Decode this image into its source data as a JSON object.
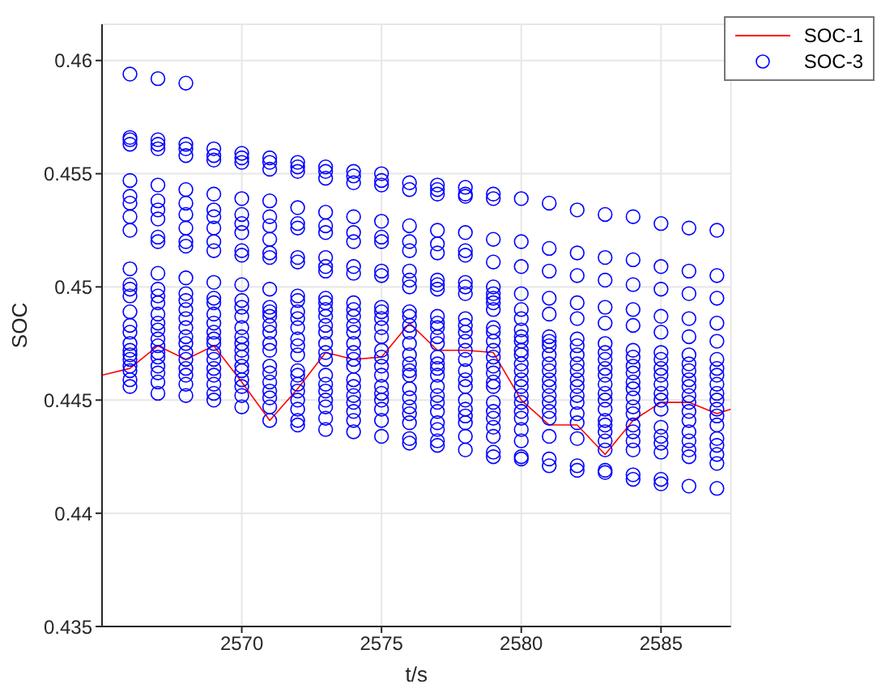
{
  "chart_data": {
    "type": "scatter",
    "xlabel": "t/s",
    "ylabel": "SOC",
    "xlim": [
      2565,
      2587.5
    ],
    "xticks": [
      2570,
      2575,
      2580,
      2585
    ],
    "ylim": [
      0.435,
      0.4616
    ],
    "yticks": [
      0.435,
      0.44,
      0.445,
      0.45,
      0.455,
      0.46
    ],
    "grid": true,
    "legend": "top right",
    "series": [
      {
        "name": "SOC-1",
        "type": "line",
        "color": "#ff0000",
        "line_style": "solid",
        "marker": "none",
        "x": [
          2565,
          2566,
          2567,
          2568,
          2569,
          2570,
          2571,
          2572,
          2573,
          2574,
          2575,
          2576,
          2577,
          2578,
          2579,
          2580,
          2581,
          2582,
          2583,
          2584,
          2585,
          2586,
          2587,
          2587.5
        ],
        "values": [
          0.4461,
          0.4464,
          0.4474,
          0.4468,
          0.4474,
          0.4458,
          0.4441,
          0.4455,
          0.4471,
          0.4468,
          0.4469,
          0.4484,
          0.4472,
          0.4472,
          0.4471,
          0.445,
          0.4439,
          0.4439,
          0.4426,
          0.4441,
          0.4449,
          0.4449,
          0.4444,
          0.4446
        ]
      },
      {
        "name": "SOC-3",
        "color": "#0000ff",
        "marker": "circle",
        "x": [
          2566,
          2566,
          2566,
          2566,
          2566,
          2566,
          2566,
          2566,
          2566,
          2566,
          2566,
          2566,
          2566,
          2566,
          2566,
          2566,
          2566,
          2566,
          2566,
          2566,
          2566,
          2566,
          2566,
          2566,
          2567,
          2567,
          2567,
          2567,
          2567,
          2567,
          2567,
          2567,
          2567,
          2567,
          2567,
          2567,
          2567,
          2567,
          2567,
          2567,
          2567,
          2567,
          2567,
          2567,
          2567,
          2567,
          2567,
          2567,
          2567,
          2568,
          2568,
          2568,
          2568,
          2568,
          2568,
          2568,
          2568,
          2568,
          2568,
          2568,
          2568,
          2568,
          2568,
          2568,
          2568,
          2568,
          2568,
          2568,
          2568,
          2568,
          2568,
          2568,
          2568,
          2569,
          2569,
          2569,
          2569,
          2569,
          2569,
          2569,
          2569,
          2569,
          2569,
          2569,
          2569,
          2569,
          2569,
          2569,
          2569,
          2569,
          2569,
          2569,
          2569,
          2569,
          2569,
          2569,
          2569,
          2570,
          2570,
          2570,
          2570,
          2570,
          2570,
          2570,
          2570,
          2570,
          2570,
          2570,
          2570,
          2570,
          2570,
          2570,
          2570,
          2570,
          2570,
          2570,
          2570,
          2570,
          2570,
          2570,
          2570,
          2571,
          2571,
          2571,
          2571,
          2571,
          2571,
          2571,
          2571,
          2571,
          2571,
          2571,
          2571,
          2571,
          2571,
          2571,
          2571,
          2571,
          2571,
          2571,
          2571,
          2571,
          2571,
          2571,
          2571,
          2572,
          2572,
          2572,
          2572,
          2572,
          2572,
          2572,
          2572,
          2572,
          2572,
          2572,
          2572,
          2572,
          2572,
          2572,
          2572,
          2572,
          2572,
          2572,
          2572,
          2572,
          2572,
          2572,
          2572,
          2573,
          2573,
          2573,
          2573,
          2573,
          2573,
          2573,
          2573,
          2573,
          2573,
          2573,
          2573,
          2573,
          2573,
          2573,
          2573,
          2573,
          2573,
          2573,
          2573,
          2573,
          2573,
          2573,
          2573,
          2573,
          2574,
          2574,
          2574,
          2574,
          2574,
          2574,
          2574,
          2574,
          2574,
          2574,
          2574,
          2574,
          2574,
          2574,
          2574,
          2574,
          2574,
          2574,
          2574,
          2574,
          2574,
          2574,
          2574,
          2574,
          2575,
          2575,
          2575,
          2575,
          2575,
          2575,
          2575,
          2575,
          2575,
          2575,
          2575,
          2575,
          2575,
          2575,
          2575,
          2575,
          2575,
          2575,
          2575,
          2575,
          2575,
          2575,
          2575,
          2576,
          2576,
          2576,
          2576,
          2576,
          2576,
          2576,
          2576,
          2576,
          2576,
          2576,
          2576,
          2576,
          2576,
          2576,
          2576,
          2576,
          2576,
          2576,
          2576,
          2576,
          2576,
          2576,
          2576,
          2577,
          2577,
          2577,
          2577,
          2577,
          2577,
          2577,
          2577,
          2577,
          2577,
          2577,
          2577,
          2577,
          2577,
          2577,
          2577,
          2577,
          2577,
          2577,
          2577,
          2577,
          2577,
          2577,
          2577,
          2577,
          2577,
          2578,
          2578,
          2578,
          2578,
          2578,
          2578,
          2578,
          2578,
          2578,
          2578,
          2578,
          2578,
          2578,
          2578,
          2578,
          2578,
          2578,
          2578,
          2578,
          2578,
          2578,
          2578,
          2578,
          2578,
          2579,
          2579,
          2579,
          2579,
          2579,
          2579,
          2579,
          2579,
          2579,
          2579,
          2579,
          2579,
          2579,
          2579,
          2579,
          2579,
          2579,
          2579,
          2579,
          2579,
          2579,
          2579,
          2579,
          2579,
          2579,
          2580,
          2580,
          2580,
          2580,
          2580,
          2580,
          2580,
          2580,
          2580,
          2580,
          2580,
          2580,
          2580,
          2580,
          2580,
          2580,
          2580,
          2580,
          2580,
          2580,
          2580,
          2580,
          2580,
          2581,
          2581,
          2581,
          2581,
          2581,
          2581,
          2581,
          2581,
          2581,
          2581,
          2581,
          2581,
          2581,
          2581,
          2581,
          2581,
          2581,
          2581,
          2581,
          2581,
          2582,
          2582,
          2582,
          2582,
          2582,
          2582,
          2582,
          2582,
          2582,
          2582,
          2582,
          2582,
          2582,
          2582,
          2582,
          2582,
          2582,
          2582,
          2582,
          2583,
          2583,
          2583,
          2583,
          2583,
          2583,
          2583,
          2583,
          2583,
          2583,
          2583,
          2583,
          2583,
          2583,
          2583,
          2583,
          2583,
          2583,
          2583,
          2583,
          2583,
          2584,
          2584,
          2584,
          2584,
          2584,
          2584,
          2584,
          2584,
          2584,
          2584,
          2584,
          2584,
          2584,
          2584,
          2584,
          2584,
          2584,
          2584,
          2584,
          2584,
          2585,
          2585,
          2585,
          2585,
          2585,
          2585,
          2585,
          2585,
          2585,
          2585,
          2585,
          2585,
          2585,
          2585,
          2585,
          2585,
          2585,
          2585,
          2585,
          2586,
          2586,
          2586,
          2586,
          2586,
          2586,
          2586,
          2586,
          2586,
          2586,
          2586,
          2586,
          2586,
          2586,
          2586,
          2586,
          2586,
          2586,
          2586,
          2587,
          2587,
          2587,
          2587,
          2587,
          2587,
          2587,
          2587,
          2587,
          2587,
          2587,
          2587,
          2587,
          2587,
          2587,
          2587,
          2587,
          2587,
          2587
        ],
        "values": [
          0.4594,
          0.4566,
          0.4565,
          0.4563,
          0.4547,
          0.454,
          0.4537,
          0.4531,
          0.4525,
          0.4508,
          0.4501,
          0.4499,
          0.4496,
          0.4489,
          0.4483,
          0.448,
          0.4475,
          0.4472,
          0.447,
          0.4468,
          0.4465,
          0.4463,
          0.4459,
          0.4456,
          0.4592,
          0.4565,
          0.4563,
          0.4561,
          0.4545,
          0.4538,
          0.4534,
          0.453,
          0.4522,
          0.452,
          0.4506,
          0.4499,
          0.4496,
          0.4493,
          0.4488,
          0.4484,
          0.4481,
          0.4477,
          0.4474,
          0.4471,
          0.4469,
          0.4465,
          0.4462,
          0.4458,
          0.4453,
          0.459,
          0.4563,
          0.4561,
          0.4558,
          0.4543,
          0.4537,
          0.4532,
          0.4526,
          0.452,
          0.4518,
          0.4504,
          0.4497,
          0.4494,
          0.449,
          0.4486,
          0.4482,
          0.4478,
          0.4475,
          0.4471,
          0.4468,
          0.4464,
          0.4461,
          0.4457,
          0.4452,
          0.4561,
          0.4558,
          0.4556,
          0.4541,
          0.4534,
          0.4531,
          0.4526,
          0.452,
          0.4516,
          0.4502,
          0.4495,
          0.4493,
          0.4488,
          0.4484,
          0.448,
          0.4477,
          0.4475,
          0.4471,
          0.4468,
          0.4464,
          0.4461,
          0.4457,
          0.4453,
          0.445,
          0.4559,
          0.4557,
          0.4555,
          0.4539,
          0.4532,
          0.4528,
          0.4524,
          0.4516,
          0.4514,
          0.4501,
          0.4494,
          0.4491,
          0.4487,
          0.4482,
          0.4478,
          0.4475,
          0.4472,
          0.4469,
          0.4465,
          0.4463,
          0.4459,
          0.4456,
          0.4452,
          0.4447,
          0.4557,
          0.4555,
          0.4552,
          0.4538,
          0.4531,
          0.4527,
          0.4521,
          0.4515,
          0.4513,
          0.4499,
          0.4491,
          0.4489,
          0.4487,
          0.4483,
          0.448,
          0.4475,
          0.4472,
          0.4465,
          0.4462,
          0.4458,
          0.4454,
          0.4451,
          0.4447,
          0.4441,
          0.4555,
          0.4553,
          0.4551,
          0.4535,
          0.4528,
          0.4526,
          0.4513,
          0.4511,
          0.4496,
          0.4494,
          0.4489,
          0.4486,
          0.4482,
          0.4477,
          0.4474,
          0.447,
          0.4463,
          0.4461,
          0.4457,
          0.4454,
          0.445,
          0.4446,
          0.4441,
          0.4439,
          0.4553,
          0.4551,
          0.4548,
          0.4533,
          0.4527,
          0.4524,
          0.4513,
          0.4509,
          0.4507,
          0.4495,
          0.4493,
          0.449,
          0.4487,
          0.4483,
          0.448,
          0.4475,
          0.4471,
          0.4468,
          0.4461,
          0.4457,
          0.4454,
          0.445,
          0.4447,
          0.4442,
          0.4437,
          0.4551,
          0.4549,
          0.4546,
          0.4531,
          0.4524,
          0.452,
          0.4509,
          0.4506,
          0.4493,
          0.449,
          0.4487,
          0.4483,
          0.448,
          0.4475,
          0.4471,
          0.4468,
          0.4465,
          0.4459,
          0.4456,
          0.4452,
          0.4449,
          0.4445,
          0.4441,
          0.4436,
          0.455,
          0.4547,
          0.4545,
          0.4529,
          0.4522,
          0.452,
          0.4507,
          0.4505,
          0.4491,
          0.4489,
          0.4486,
          0.4482,
          0.4478,
          0.4472,
          0.4469,
          0.4465,
          0.4461,
          0.4456,
          0.4453,
          0.445,
          0.4446,
          0.4441,
          0.4434,
          0.4546,
          0.4543,
          0.4527,
          0.452,
          0.4516,
          0.4507,
          0.4503,
          0.45,
          0.4489,
          0.4487,
          0.4483,
          0.448,
          0.4475,
          0.447,
          0.4466,
          0.4463,
          0.4461,
          0.4455,
          0.4451,
          0.4447,
          0.4444,
          0.444,
          0.4433,
          0.4431,
          0.4545,
          0.4543,
          0.4541,
          0.4525,
          0.4519,
          0.4515,
          0.4503,
          0.4501,
          0.4499,
          0.4487,
          0.4484,
          0.4482,
          0.4478,
          0.4475,
          0.4469,
          0.4466,
          0.4464,
          0.4461,
          0.4456,
          0.4452,
          0.4449,
          0.4445,
          0.444,
          0.4437,
          0.4432,
          0.443,
          0.4544,
          0.4541,
          0.454,
          0.4524,
          0.4516,
          0.4514,
          0.4502,
          0.45,
          0.4497,
          0.4486,
          0.4483,
          0.448,
          0.4476,
          0.4472,
          0.4468,
          0.4463,
          0.4459,
          0.4456,
          0.445,
          0.4446,
          0.4443,
          0.444,
          0.4434,
          0.4428,
          0.4541,
          0.4539,
          0.4521,
          0.4511,
          0.45,
          0.4497,
          0.4495,
          0.4493,
          0.449,
          0.4482,
          0.448,
          0.4476,
          0.4472,
          0.4469,
          0.4465,
          0.4462,
          0.4458,
          0.4456,
          0.4449,
          0.4445,
          0.4442,
          0.4438,
          0.4434,
          0.4427,
          0.4425,
          0.4539,
          0.452,
          0.4509,
          0.4497,
          0.449,
          0.4486,
          0.4481,
          0.4478,
          0.4476,
          0.4472,
          0.447,
          0.4466,
          0.4463,
          0.4459,
          0.4456,
          0.4452,
          0.4449,
          0.4445,
          0.4442,
          0.4437,
          0.4432,
          0.4425,
          0.4424,
          0.4537,
          0.4517,
          0.4507,
          0.4495,
          0.4488,
          0.4478,
          0.4476,
          0.4474,
          0.447,
          0.4466,
          0.4463,
          0.4459,
          0.4456,
          0.4452,
          0.4449,
          0.4445,
          0.4442,
          0.4434,
          0.4424,
          0.4421,
          0.4534,
          0.4515,
          0.4505,
          0.4493,
          0.4486,
          0.4477,
          0.4474,
          0.447,
          0.4466,
          0.4463,
          0.4459,
          0.4456,
          0.4452,
          0.4449,
          0.4444,
          0.444,
          0.4433,
          0.4421,
          0.4419,
          0.4532,
          0.4513,
          0.4503,
          0.4491,
          0.4484,
          0.4475,
          0.4471,
          0.4468,
          0.4464,
          0.4461,
          0.4457,
          0.4453,
          0.445,
          0.4446,
          0.4441,
          0.4439,
          0.4436,
          0.4432,
          0.4428,
          0.4419,
          0.4418,
          0.4531,
          0.4512,
          0.4501,
          0.449,
          0.4483,
          0.4472,
          0.4469,
          0.4465,
          0.4462,
          0.4458,
          0.4455,
          0.4451,
          0.4447,
          0.4444,
          0.4439,
          0.4436,
          0.4432,
          0.4428,
          0.4417,
          0.4415,
          0.4528,
          0.4509,
          0.4499,
          0.4487,
          0.448,
          0.4471,
          0.4468,
          0.4464,
          0.4461,
          0.4457,
          0.4453,
          0.445,
          0.4446,
          0.4438,
          0.4434,
          0.4431,
          0.4427,
          0.4415,
          0.4413,
          0.4526,
          0.4507,
          0.4497,
          0.4486,
          0.4478,
          0.447,
          0.4466,
          0.4463,
          0.4459,
          0.4456,
          0.4452,
          0.4449,
          0.4445,
          0.4441,
          0.4436,
          0.4432,
          0.4428,
          0.4425,
          0.4412,
          0.4525,
          0.4505,
          0.4495,
          0.4484,
          0.4476,
          0.4468,
          0.4464,
          0.4461,
          0.4457,
          0.4453,
          0.445,
          0.4446,
          0.4443,
          0.4439,
          0.4433,
          0.443,
          0.4426,
          0.4422,
          0.4411
        ]
      }
    ]
  }
}
